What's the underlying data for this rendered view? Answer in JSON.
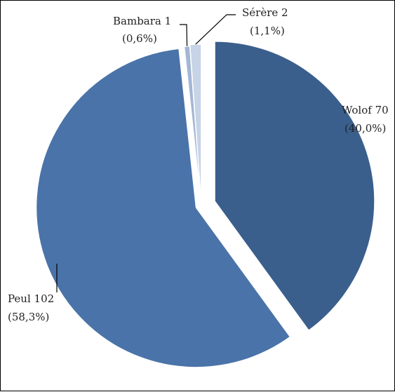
{
  "chart_data": {
    "type": "pie",
    "title": "",
    "slices": [
      {
        "name": "Wolof",
        "value": 70,
        "percent_label": "(40,0%)",
        "label_line1": "Wolof 70",
        "label_line2": "(40,0%)",
        "color": "#3b5f8c"
      },
      {
        "name": "Peul",
        "value": 102,
        "percent_label": "(58,3%)",
        "label_line1": "Peul 102",
        "label_line2": "(58,3%)",
        "color": "#4a73a9"
      },
      {
        "name": "Bambara",
        "value": 1,
        "percent_label": "(0,6%)",
        "label_line1": "Bambara 1",
        "label_line2": "(0,6%)",
        "color": "#a3b6d5"
      },
      {
        "name": "Sérère",
        "value": 2,
        "percent_label": "(1,1%)",
        "label_line1": "Sérère 2",
        "label_line2": "(1,1%)",
        "color": "#c7d3e6"
      }
    ],
    "legend": "none"
  }
}
